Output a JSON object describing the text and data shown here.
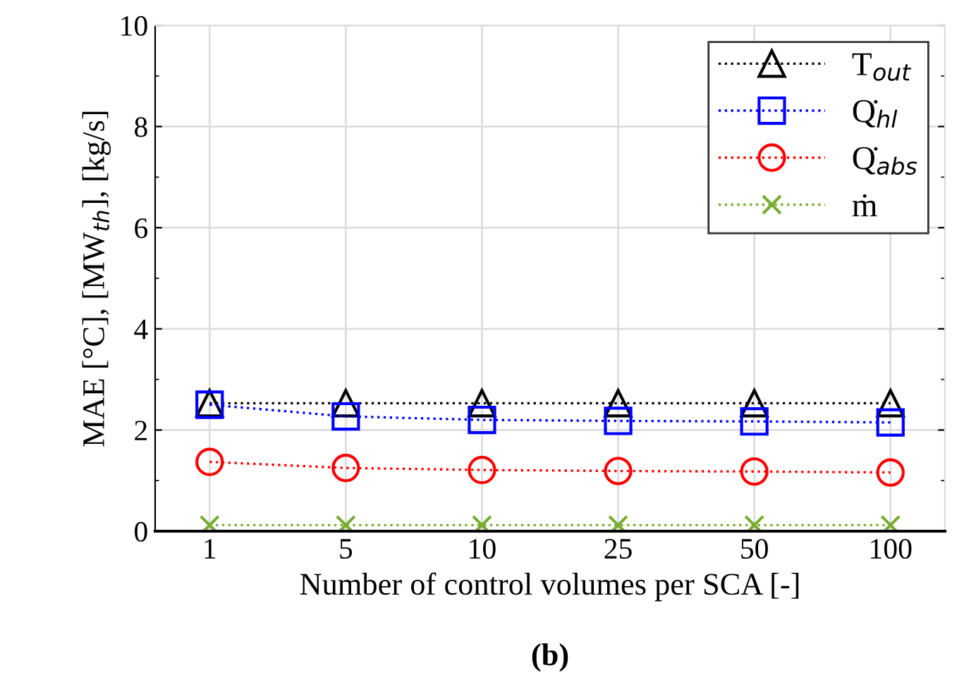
{
  "chart_data": {
    "type": "line",
    "xlabel": "Number of control volumes per SCA [-]",
    "ylabel": "MAE [°C], [MW$_{th}$], [kg/s]",
    "categories": [
      "1",
      "5",
      "10",
      "25",
      "50",
      "100"
    ],
    "ylim": [
      0,
      10
    ],
    "yticks": [
      0,
      2,
      4,
      6,
      8,
      10
    ],
    "grid": true,
    "legend": "top right",
    "line_style": "dotted",
    "annotations": [
      "(b)"
    ],
    "series": [
      {
        "name": "T$_{out}$",
        "color": "#000000",
        "marker": "triangle",
        "values": [
          2.53,
          2.53,
          2.53,
          2.53,
          2.53,
          2.53
        ]
      },
      {
        "name": "Q̇$_{hl}$",
        "color": "#0000ff",
        "marker": "square",
        "values": [
          2.5,
          2.27,
          2.2,
          2.18,
          2.17,
          2.15
        ]
      },
      {
        "name": "Q̇$_{abs}$",
        "color": "#ff0000",
        "marker": "circle",
        "values": [
          1.37,
          1.25,
          1.21,
          1.19,
          1.18,
          1.16
        ]
      },
      {
        "name": "ṁ",
        "color": "#77ac30",
        "marker": "cross",
        "values": [
          0.12,
          0.12,
          0.12,
          0.12,
          0.12,
          0.12
        ]
      }
    ]
  }
}
